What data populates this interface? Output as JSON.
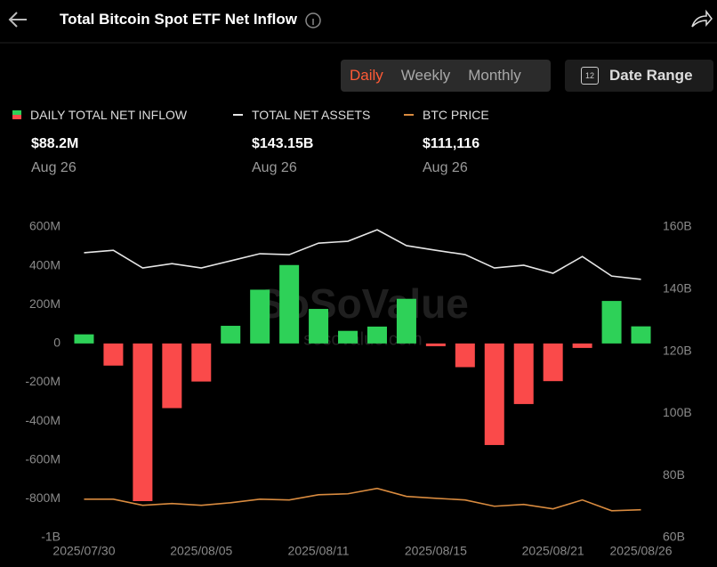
{
  "header": {
    "title": "Total Bitcoin Spot ETF Net Inflow"
  },
  "controls": {
    "periods": [
      "Daily",
      "Weekly",
      "Monthly"
    ],
    "active_period": 0,
    "date_icon": "12",
    "date_range": "Date Range"
  },
  "stats": [
    {
      "value": "$88.2M",
      "date": "Aug 26"
    },
    {
      "value": "$143.15B",
      "date": "Aug 26"
    },
    {
      "value": "$111,116",
      "date": "Aug 26"
    }
  ],
  "watermark": {
    "brand": "SoSoValue",
    "site": "sosovalue.com"
  },
  "chart_data": {
    "type": "bar",
    "categories": [
      "2025/07/30",
      null,
      null,
      null,
      "2025/08/05",
      null,
      null,
      null,
      "2025/08/11",
      null,
      null,
      null,
      "2025/08/15",
      null,
      null,
      null,
      "2025/08/21",
      null,
      null,
      "2025/08/26"
    ],
    "series": [
      {
        "name": "DAILY TOTAL NET INFLOW",
        "type": "bar",
        "axis": "y",
        "color": "#2ed158",
        "negative_color": "#fa4a4a",
        "values": [
          47,
          -114,
          -812,
          -333,
          -196,
          91,
          277,
          404,
          178,
          65,
          87,
          230,
          -14,
          -122,
          -523,
          -312,
          -194,
          -23,
          219,
          88.2
        ]
      },
      {
        "name": "TOTAL NET ASSETS",
        "type": "line",
        "axis": "y2",
        "color": "#e6e6e6",
        "values": [
          151.7,
          152.5,
          146.8,
          148.2,
          146.8,
          149.1,
          151.4,
          151.1,
          154.8,
          155.4,
          159.1,
          154.0,
          152.5,
          151.1,
          146.8,
          147.7,
          145.1,
          150.5,
          144.2,
          143.15
        ]
      },
      {
        "name": "BTC PRICE",
        "type": "line",
        "axis": "y3",
        "color": "#d98b3f",
        "values": [
          118000,
          118000,
          114000,
          115200,
          114000,
          115700,
          118000,
          117500,
          120900,
          121500,
          125000,
          119800,
          118600,
          117500,
          113400,
          114600,
          111700,
          117500,
          110500,
          111116
        ]
      }
    ],
    "ylim": [
      -1000,
      600
    ],
    "yticks": [
      {
        "value": 600,
        "label": "600M"
      },
      {
        "value": 400,
        "label": "400M"
      },
      {
        "value": 200,
        "label": "200M"
      },
      0,
      {
        "value": -200,
        "label": "-200M"
      },
      {
        "value": -400,
        "label": "-400M"
      },
      {
        "value": -600,
        "label": "-600M"
      },
      {
        "value": -800,
        "label": "-800M"
      },
      {
        "value": -1000,
        "label": "-1B"
      }
    ],
    "y2lim": [
      60,
      160
    ],
    "y2ticks": [
      {
        "value": 160,
        "label": "160B"
      },
      {
        "value": 140,
        "label": "140B"
      },
      {
        "value": 120,
        "label": "120B"
      },
      {
        "value": 100,
        "label": "100B"
      },
      {
        "value": 80,
        "label": "80B"
      },
      {
        "value": 60,
        "label": "60B"
      }
    ],
    "y3lim": [
      93000,
      295000
    ],
    "grid": false
  }
}
